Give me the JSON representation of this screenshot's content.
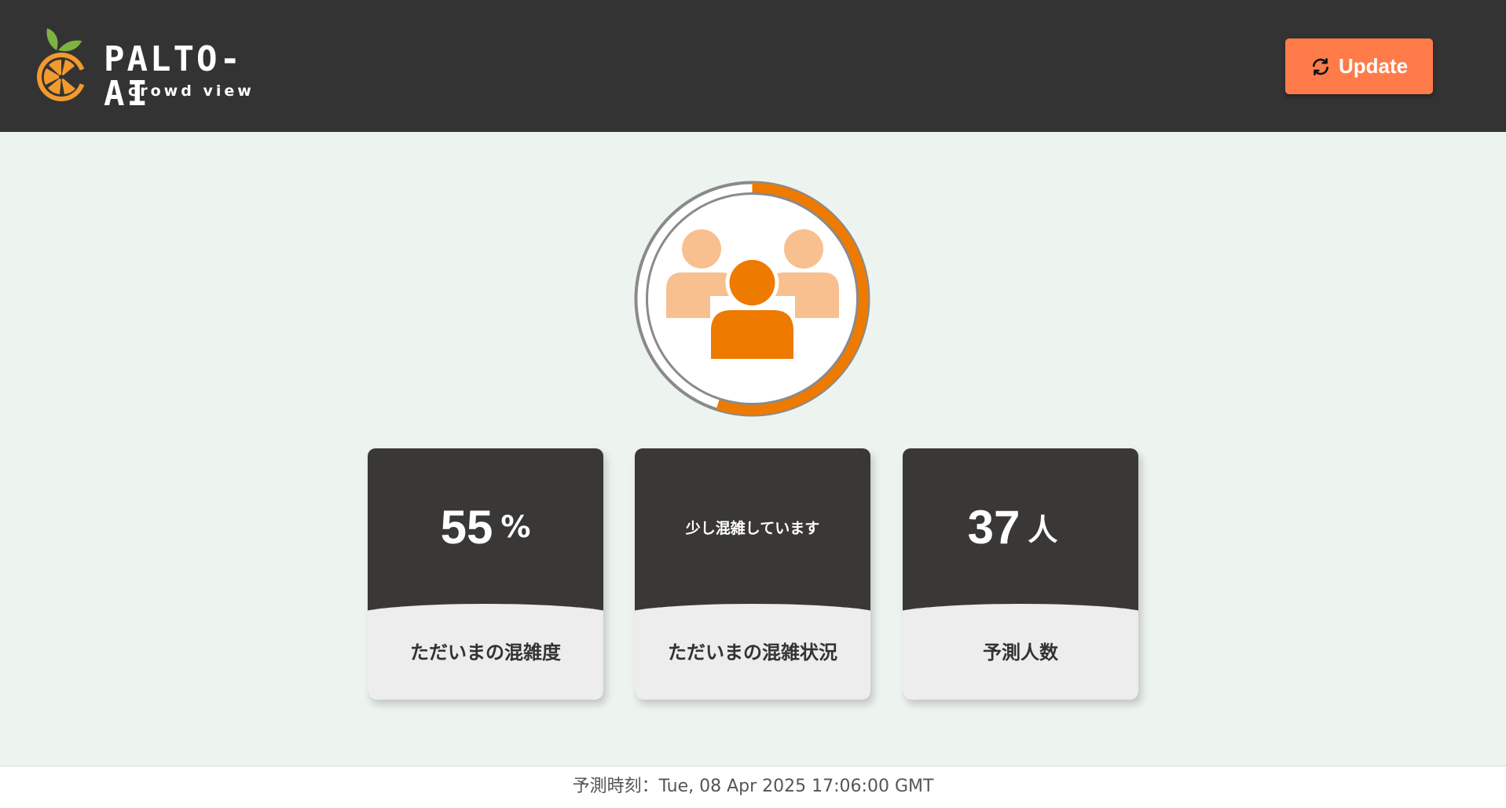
{
  "header": {
    "logo_title": "PALTO-AI",
    "logo_subtitle": "crowd view",
    "update_label": "Update",
    "update_icon": "refresh-icon"
  },
  "gauge": {
    "level_fraction": 0.55,
    "icon": "people-group-icon",
    "colors": {
      "fill": "#ee7a00",
      "track": "#8a8a8a",
      "people_light": "#f8c08e",
      "people_main": "#ee7a00"
    }
  },
  "cards": [
    {
      "value": "55",
      "unit": "%",
      "label": "ただいまの混雑度"
    },
    {
      "status": "少し混雑しています",
      "label": "ただいまの混雑状況"
    },
    {
      "value": "37",
      "unit": "人",
      "label": "予測人数"
    }
  ],
  "footer": {
    "prediction_time": "予測時刻：Tue, 08 Apr 2025 17:06:00 GMT"
  },
  "colors": {
    "header_bg": "#343333",
    "page_bg": "#edf3ef",
    "accent": "#ff7b4a",
    "card_dark": "#3a3837",
    "card_light": "#ededed"
  }
}
